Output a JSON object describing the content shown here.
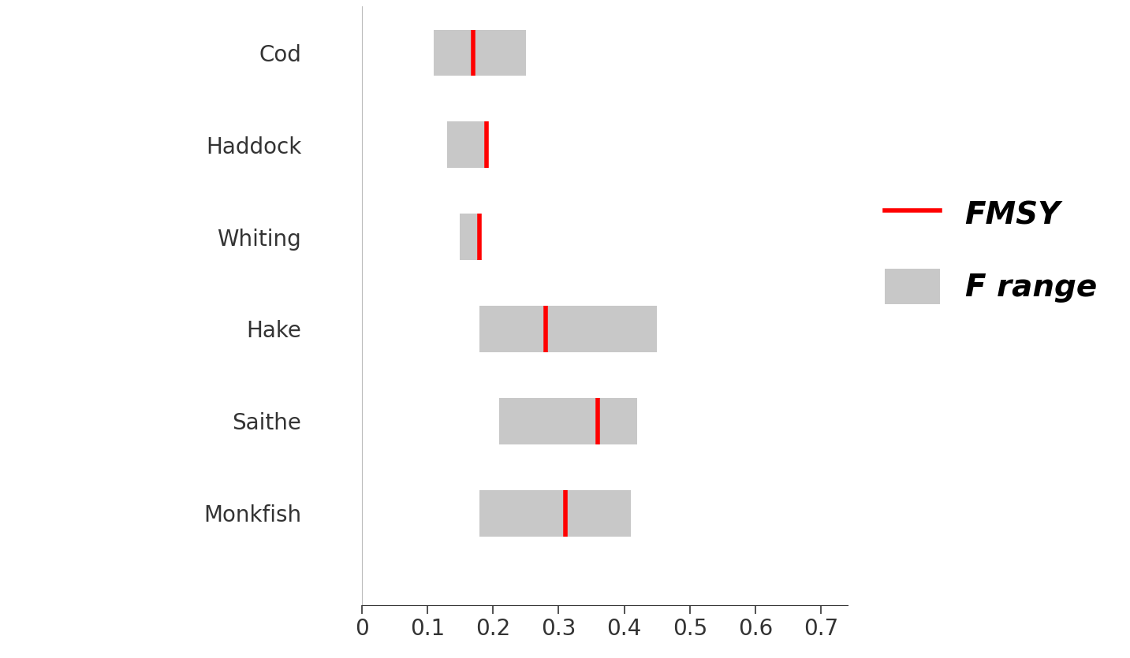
{
  "chart_data": {
    "type": "range",
    "orientation": "horizontal",
    "categories": [
      "Cod",
      "Haddock",
      "Whiting",
      "Hake",
      "Saithe",
      "Monkfish"
    ],
    "series": [
      {
        "name": "FMSY",
        "type": "marker",
        "color": "#ff0000",
        "values": [
          0.17,
          0.19,
          0.18,
          0.28,
          0.36,
          0.31
        ]
      },
      {
        "name": "F range",
        "type": "bar",
        "color": "#c8c8c8",
        "low": [
          0.11,
          0.13,
          0.15,
          0.18,
          0.21,
          0.18
        ],
        "high": [
          0.25,
          0.19,
          0.18,
          0.45,
          0.42,
          0.41
        ]
      }
    ],
    "xlim": [
      0,
      0.74
    ],
    "xticks": [
      0,
      0.1,
      0.2,
      0.3,
      0.4,
      0.5,
      0.6,
      0.7
    ],
    "grid": false,
    "legend": "center right"
  }
}
